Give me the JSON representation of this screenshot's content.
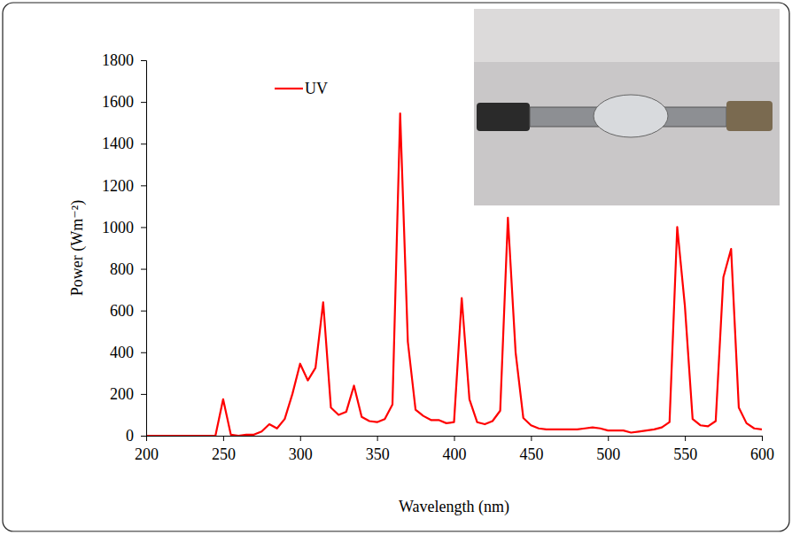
{
  "chart_data": {
    "type": "line",
    "x_label": "Wavelength (nm)",
    "y_label": "Power (Wm⁻²)",
    "x": [
      200,
      205,
      210,
      215,
      220,
      225,
      230,
      235,
      240,
      245,
      250,
      255,
      260,
      265,
      270,
      275,
      280,
      285,
      290,
      295,
      300,
      305,
      310,
      315,
      320,
      325,
      330,
      335,
      340,
      345,
      350,
      355,
      360,
      365,
      370,
      375,
      380,
      385,
      390,
      395,
      400,
      405,
      410,
      415,
      420,
      425,
      430,
      435,
      440,
      445,
      450,
      455,
      460,
      465,
      470,
      475,
      480,
      485,
      490,
      495,
      500,
      505,
      510,
      515,
      520,
      525,
      530,
      535,
      540,
      545,
      550,
      555,
      560,
      565,
      570,
      575,
      580,
      585,
      590,
      595,
      600
    ],
    "series": [
      {
        "name": "UV",
        "color": "#ff0000",
        "values": [
          0,
          0,
          0,
          0,
          0,
          0,
          0,
          0,
          0,
          0,
          175,
          5,
          0,
          5,
          5,
          20,
          55,
          35,
          80,
          200,
          345,
          265,
          325,
          640,
          135,
          100,
          115,
          240,
          90,
          70,
          65,
          80,
          150,
          1545,
          450,
          125,
          95,
          75,
          75,
          60,
          65,
          660,
          175,
          65,
          55,
          70,
          120,
          1045,
          400,
          85,
          50,
          35,
          30,
          30,
          30,
          30,
          30,
          35,
          40,
          35,
          25,
          25,
          25,
          15,
          20,
          25,
          30,
          40,
          65,
          1000,
          620,
          80,
          50,
          45,
          70,
          760,
          895,
          135,
          60,
          35,
          30
        ]
      }
    ],
    "xlim": [
      200,
      600
    ],
    "xticks": [
      200,
      250,
      300,
      350,
      400,
      450,
      500,
      550,
      600
    ],
    "ylim": [
      0,
      1800
    ],
    "yticks": [
      0,
      200,
      400,
      600,
      800,
      1000,
      1200,
      1400,
      1600,
      1800
    ],
    "grid": false,
    "legend": "top-left"
  }
}
